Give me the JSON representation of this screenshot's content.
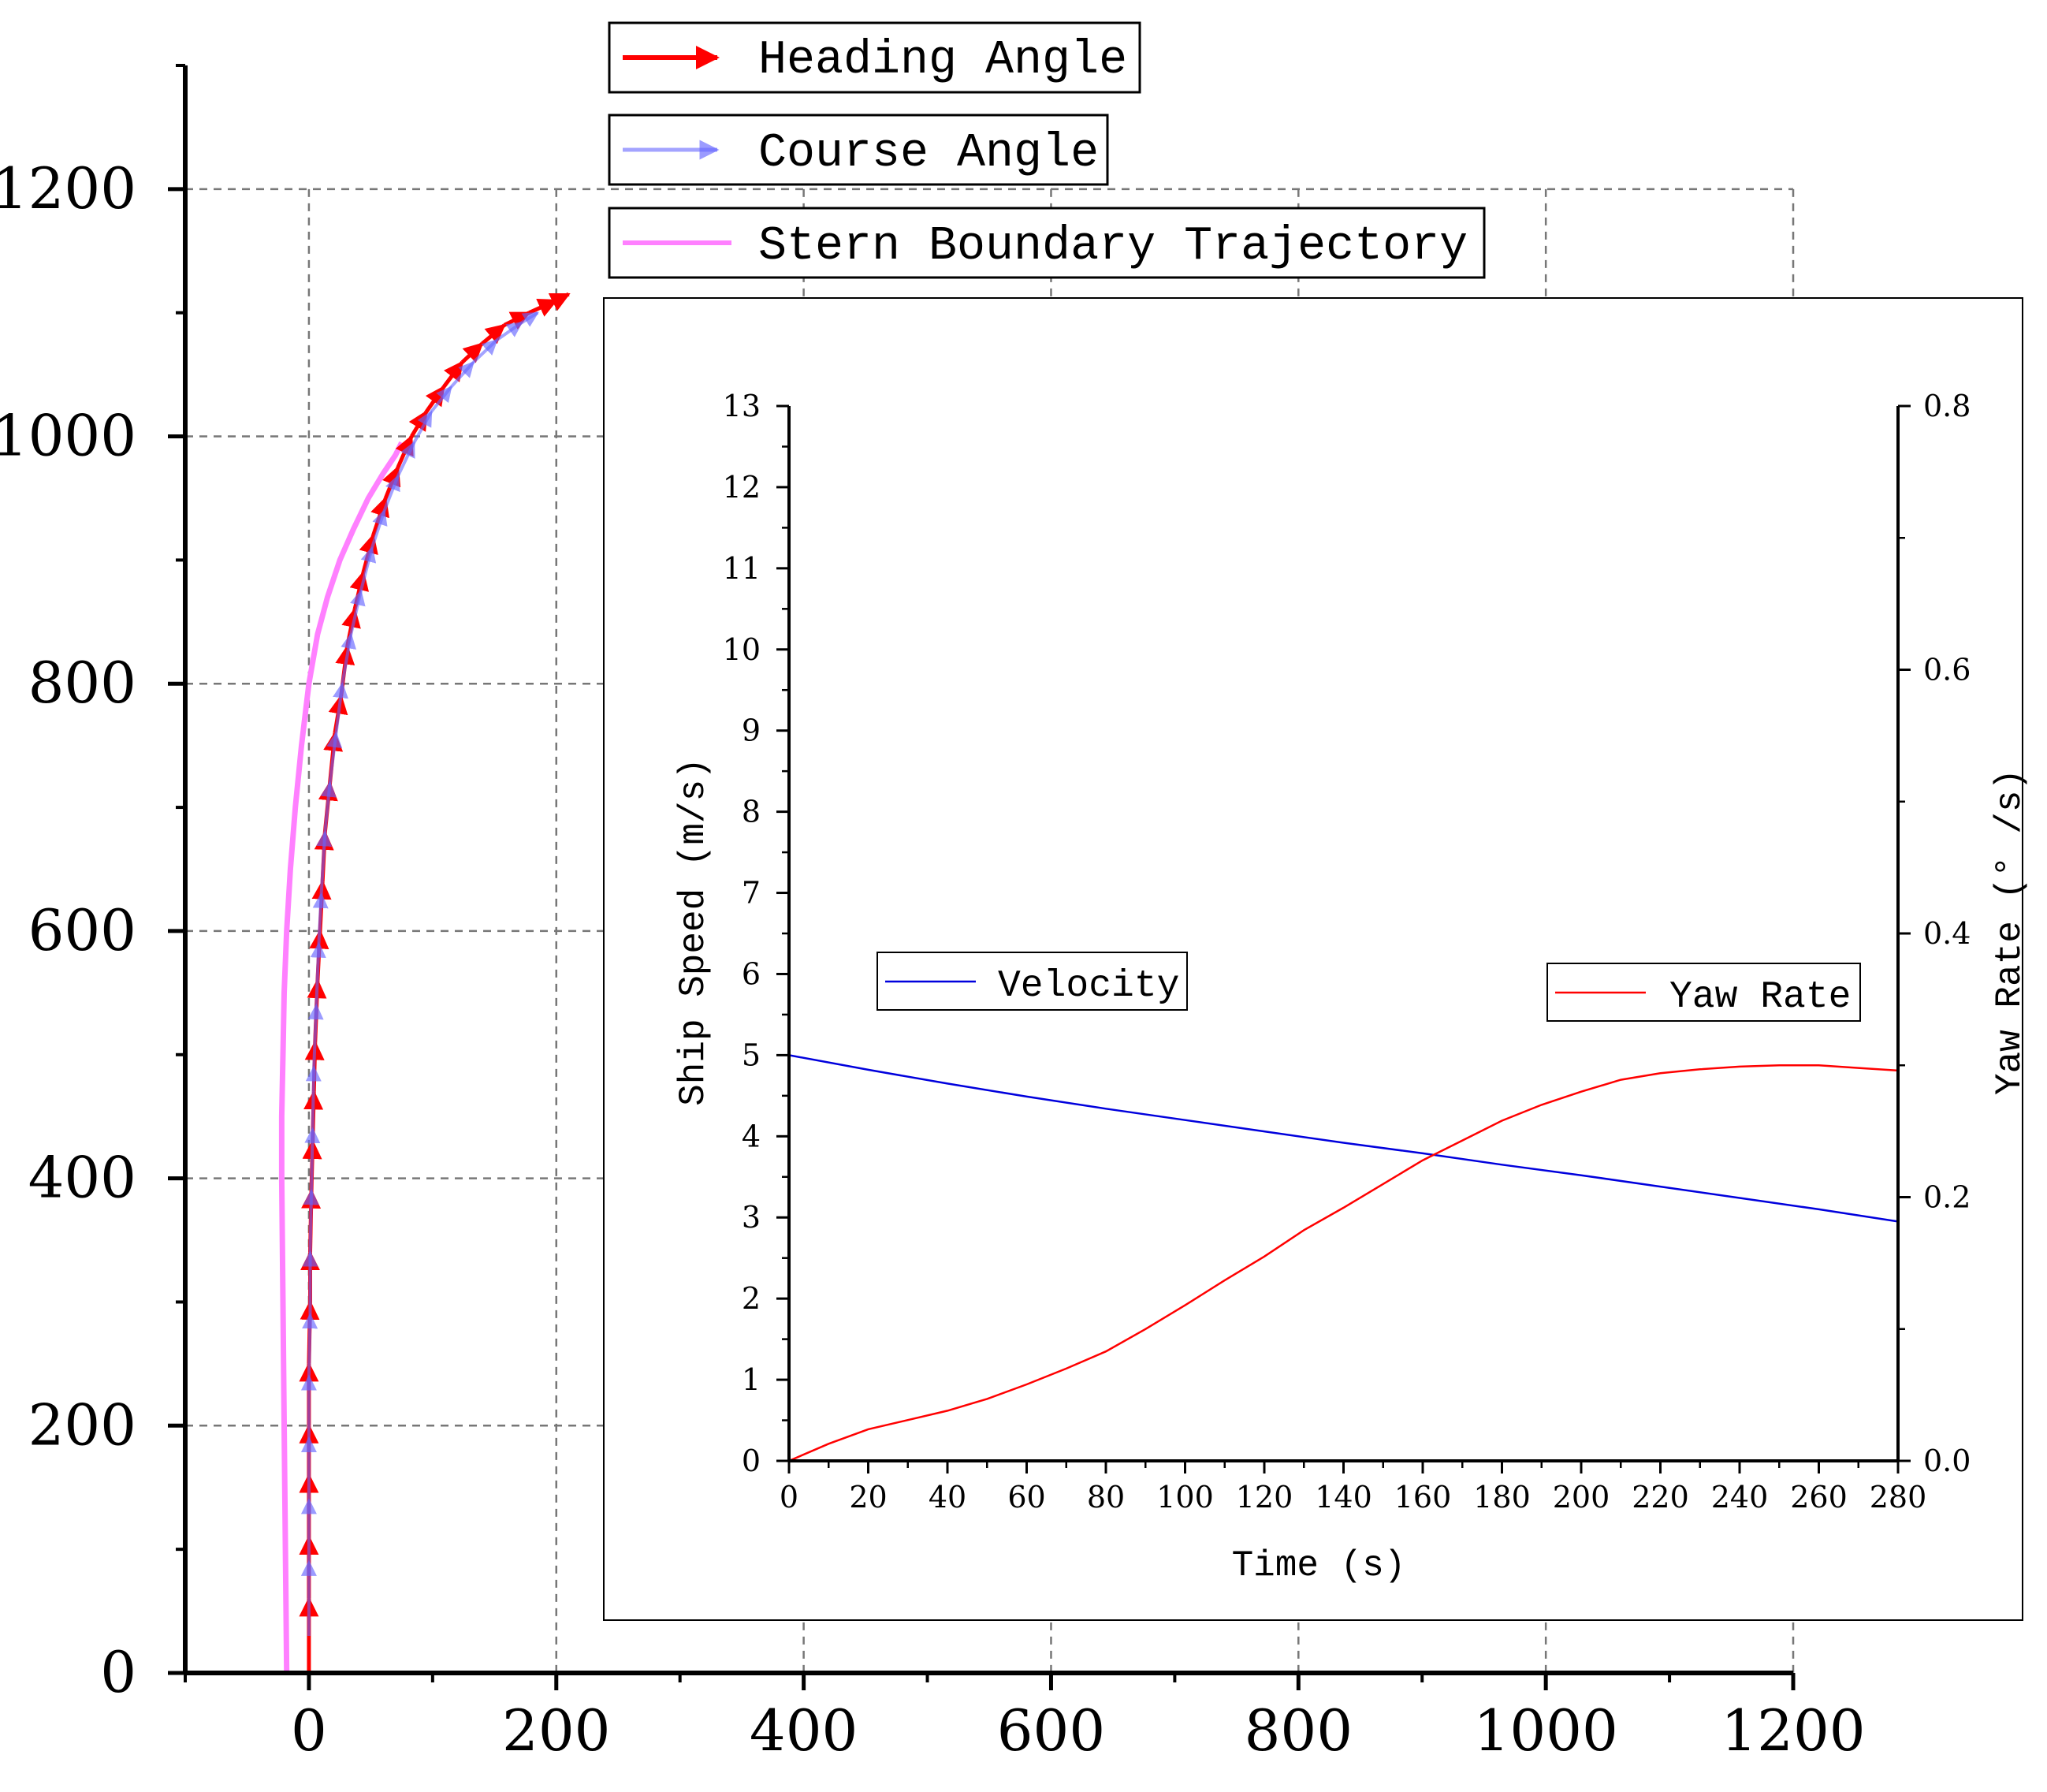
{
  "colors": {
    "heading": "#ff0000",
    "course": "#6666ff",
    "stern": "#ff80ff",
    "velocity": "#0000dd",
    "yaw": "#ff0000",
    "grid": "#777777",
    "axis": "#000000"
  },
  "chart_data": [
    {
      "type": "line",
      "title": "",
      "xlabel": "",
      "ylabel": "",
      "xlim": [
        -100,
        1200
      ],
      "ylim": [
        0,
        1300
      ],
      "xticks": [
        0,
        200,
        400,
        600,
        800,
        1000,
        1200
      ],
      "yticks": [
        0,
        200,
        400,
        600,
        800,
        1000,
        1200
      ],
      "xtick_labels": [
        "0",
        "200",
        "400",
        "600",
        "800",
        "1000",
        "1200"
      ],
      "ytick_labels": [
        "0",
        "200",
        "400",
        "600",
        "800",
        "1000",
        "1200"
      ],
      "grid": true,
      "legend": [
        "Heading Angle",
        "Course Angle",
        "Stern Boundary Trajectory"
      ],
      "legend_position": "top-center",
      "series": [
        {
          "name": "Heading Angle",
          "style": "arrows",
          "x": [
            0,
            0,
            0,
            0,
            0,
            0,
            1,
            1,
            2,
            3,
            4,
            5,
            7,
            9,
            11,
            13,
            17,
            21,
            26,
            31,
            37,
            44,
            52,
            62,
            72,
            83,
            95,
            109,
            124,
            140,
            158,
            178,
            200,
            210
          ],
          "y": [
            0,
            60,
            110,
            160,
            200,
            250,
            300,
            340,
            390,
            430,
            470,
            510,
            560,
            600,
            640,
            680,
            720,
            760,
            790,
            830,
            860,
            890,
            920,
            950,
            975,
            1000,
            1020,
            1040,
            1060,
            1075,
            1090,
            1100,
            1110,
            1115
          ]
        },
        {
          "name": "Course Angle",
          "style": "arrows",
          "x": [
            0,
            0,
            0,
            0,
            0,
            1,
            1,
            2,
            3,
            4,
            6,
            8,
            10,
            13,
            17,
            22,
            27,
            34,
            42,
            51,
            61,
            72,
            85,
            99,
            115,
            133,
            152,
            172,
            185
          ],
          "y": [
            30,
            90,
            140,
            190,
            240,
            290,
            340,
            390,
            440,
            490,
            540,
            590,
            630,
            680,
            720,
            760,
            800,
            840,
            875,
            910,
            940,
            968,
            995,
            1020,
            1040,
            1060,
            1078,
            1092,
            1100
          ]
        },
        {
          "name": "Stern Boundary Trajectory",
          "style": "line",
          "x": [
            -18,
            -19,
            -20,
            -21,
            -22,
            -22,
            -21,
            -20,
            -18,
            -15,
            -11,
            -6,
            0,
            7,
            15,
            25,
            36,
            48,
            60,
            70,
            75
          ],
          "y": [
            0,
            100,
            200,
            300,
            400,
            450,
            500,
            550,
            600,
            650,
            700,
            750,
            800,
            840,
            870,
            900,
            925,
            950,
            970,
            985,
            995
          ]
        }
      ]
    },
    {
      "type": "line",
      "title": "",
      "xlabel": "Time (s)",
      "ylabel": "Ship Speed (m/s)",
      "ylabel_right": "Yaw Rate (° /s)",
      "xlim": [
        0,
        280
      ],
      "ylim": [
        0,
        13
      ],
      "ylim_right": [
        0.0,
        0.8
      ],
      "xticks": [
        0,
        20,
        40,
        60,
        80,
        100,
        120,
        140,
        160,
        180,
        200,
        220,
        240,
        260,
        280
      ],
      "yticks": [
        0,
        1,
        2,
        3,
        4,
        5,
        6,
        7,
        8,
        9,
        10,
        11,
        12,
        13
      ],
      "yticks_right": [
        0.0,
        0.2,
        0.4,
        0.6,
        0.8
      ],
      "xtick_labels": [
        "0",
        "20",
        "40",
        "60",
        "80",
        "100",
        "120",
        "140",
        "160",
        "180",
        "200",
        "220",
        "240",
        "260",
        "280"
      ],
      "ytick_labels": [
        "0",
        "1",
        "2",
        "3",
        "4",
        "5",
        "6",
        "7",
        "8",
        "9",
        "10",
        "11",
        "12",
        "13"
      ],
      "ytick_labels_right": [
        "0.0",
        "0.2",
        "0.4",
        "0.6",
        "0.8"
      ],
      "grid": false,
      "legend": [
        "Velocity",
        "Yaw Rate"
      ],
      "series": [
        {
          "name": "Velocity",
          "axis": "left",
          "x": [
            0,
            20,
            40,
            60,
            80,
            100,
            120,
            140,
            160,
            180,
            200,
            220,
            240,
            260,
            280
          ],
          "y": [
            5.0,
            4.82,
            4.65,
            4.49,
            4.34,
            4.2,
            4.06,
            3.92,
            3.79,
            3.65,
            3.52,
            3.38,
            3.24,
            3.1,
            2.95
          ]
        },
        {
          "name": "Yaw Rate",
          "axis": "right",
          "x": [
            0,
            10,
            20,
            30,
            40,
            50,
            60,
            70,
            80,
            90,
            100,
            110,
            120,
            130,
            140,
            150,
            160,
            170,
            180,
            190,
            200,
            210,
            220,
            230,
            240,
            250,
            260,
            270,
            280
          ],
          "y": [
            0.0,
            0.013,
            0.024,
            0.031,
            0.038,
            0.047,
            0.058,
            0.07,
            0.083,
            0.1,
            0.118,
            0.137,
            0.155,
            0.175,
            0.192,
            0.21,
            0.228,
            0.243,
            0.258,
            0.27,
            0.28,
            0.289,
            0.294,
            0.297,
            0.299,
            0.3,
            0.3,
            0.298,
            0.296
          ]
        }
      ]
    }
  ]
}
